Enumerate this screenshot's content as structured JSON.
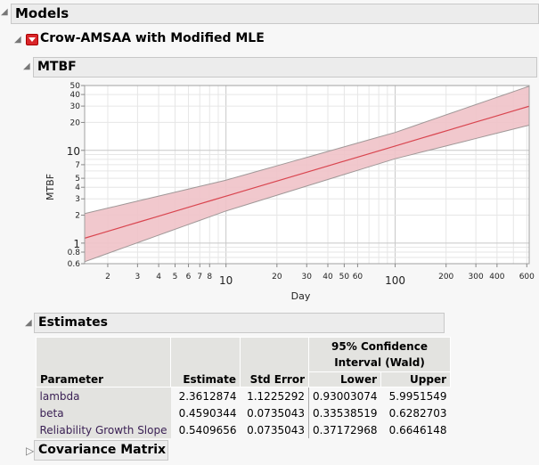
{
  "outline": {
    "models": "Models",
    "platform": "Crow-AMSAA with Modified MLE",
    "mtbf": "MTBF",
    "estimates": "Estimates",
    "covariance": "Covariance Matrix"
  },
  "chart_data": {
    "type": "line",
    "title": "",
    "xlabel": "Day",
    "ylabel": "MTBF",
    "xscale": "log",
    "yscale": "log",
    "xlim": [
      1.46,
      620
    ],
    "ylim": [
      0.6,
      50
    ],
    "grid": true,
    "x_ticks": [
      "2",
      "3",
      "4",
      "5",
      "6",
      "7",
      "8",
      "10",
      "20",
      "30",
      "40",
      "50",
      "60",
      "100",
      "200",
      "300",
      "400",
      "600"
    ],
    "y_ticks": [
      "0.6",
      "0.8",
      "1",
      "2",
      "3",
      "4",
      "5",
      "7",
      "10",
      "20",
      "30",
      "40",
      "50"
    ],
    "x": [
      1.46,
      10,
      100,
      620
    ],
    "series": [
      {
        "role": "estimate",
        "values": [
          1.13,
          3.21,
          11.14,
          29.9
        ],
        "color": "#d9454f"
      },
      {
        "role": "lower",
        "values": [
          0.63,
          2.22,
          8.12,
          18.7
        ]
      },
      {
        "role": "upper",
        "values": [
          2.08,
          4.77,
          15.6,
          49.2
        ]
      }
    ],
    "band_color": "#f0c2c8"
  },
  "estimates": {
    "group_header": "95% Confidence Interval (Wald)",
    "columns": [
      "Parameter",
      "Estimate",
      "Std Error",
      "Lower",
      "Upper"
    ],
    "rows": [
      [
        "lambda",
        "2.3612874",
        "1.1225292",
        "0.93003074",
        "5.9951549"
      ],
      [
        "beta",
        "0.4590344",
        "0.0735043",
        "0.33538519",
        "0.6282703"
      ],
      [
        "Reliability Growth Slope",
        "0.5409656",
        "0.0735043",
        "0.37172968",
        "0.6646148"
      ]
    ]
  }
}
